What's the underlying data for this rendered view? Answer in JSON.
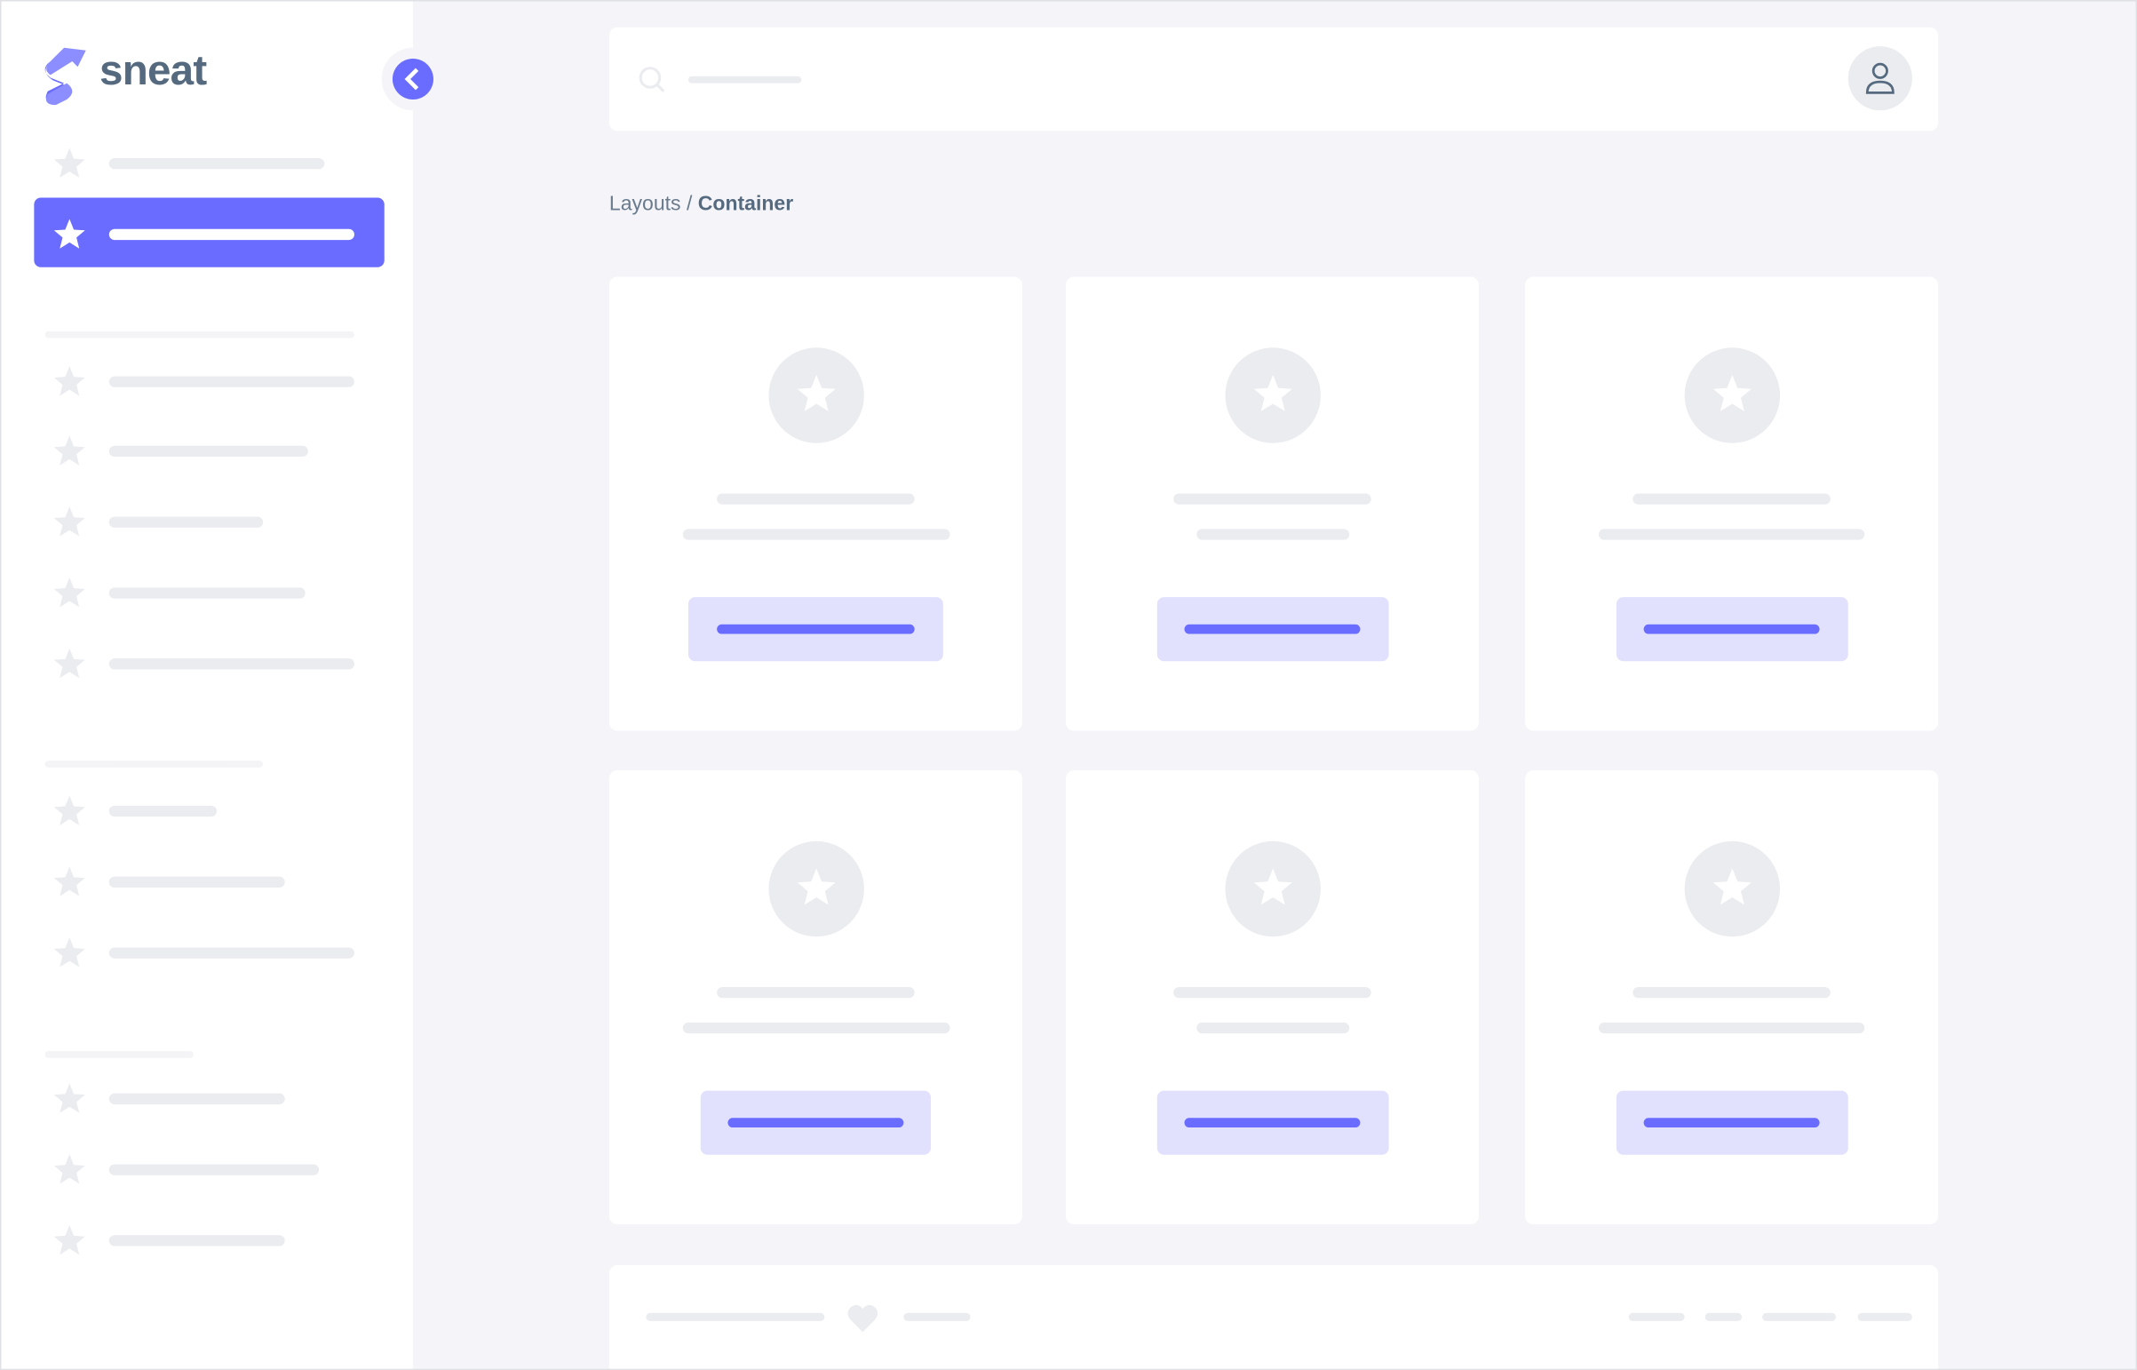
{
  "brand": {
    "name": "sneat",
    "color": "#696cff",
    "text_color": "#566a7f"
  },
  "breadcrumb": {
    "parent": "Layouts",
    "separator": "/",
    "current": "Container"
  },
  "icons": {
    "logo": "sneat-logo",
    "collapse": "chevron-left-icon",
    "nav": "star-icon",
    "search": "search-icon",
    "user": "user-icon",
    "footer": "heart-icon"
  },
  "colors": {
    "accent": "#696cff",
    "accent_light": "#e1e1fe",
    "skeleton": "#ebecf0",
    "background": "#f5f5f9"
  }
}
